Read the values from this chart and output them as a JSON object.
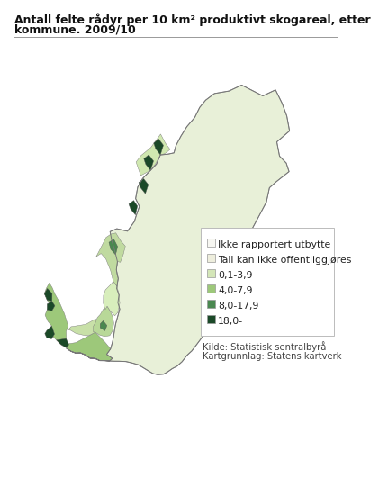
{
  "title_line1": "Antall felte rådyr per 10 km² produktivt skogareal, etter",
  "title_line2": "kommune. 2009/10",
  "legend_labels": [
    "Ikke rapportert utbytte",
    "Tall kan ikke offentliggjøres",
    "0,1-3,9",
    "4,0-7,9",
    "8,0-17,9",
    "18,0-"
  ],
  "legend_colors": [
    "#f7f7f2",
    "#eeeedd",
    "#d4e6b8",
    "#9dc87a",
    "#4a8850",
    "#1b4928"
  ],
  "source_line1": "Kilde: Statistisk sentralbyrå",
  "source_line2": "Kartgrunnlag: Statens kartverk",
  "bg_color": "#ffffff",
  "title_fontsize": 9.0,
  "legend_fontsize": 7.8,
  "source_fontsize": 7.2
}
